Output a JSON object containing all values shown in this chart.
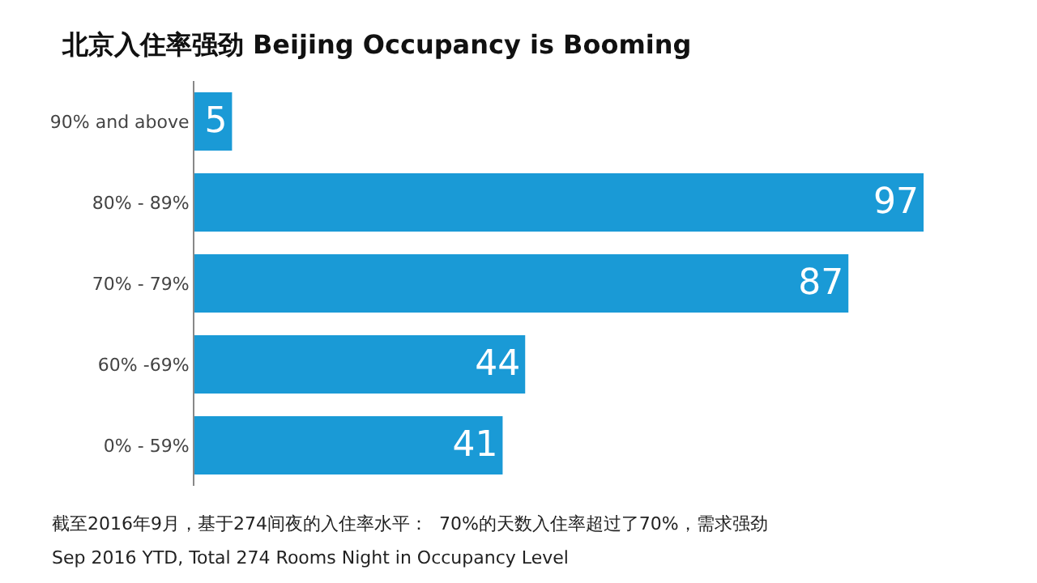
{
  "chart_data": {
    "type": "bar",
    "orientation": "horizontal",
    "title": "北京入住率强劲 Beijing Occupancy is Booming",
    "categories": [
      "90% and above",
      "80% - 89%",
      "70% - 79%",
      "60% -69%",
      "0% - 59%"
    ],
    "values": [
      5,
      97,
      87,
      44,
      41
    ],
    "color": "#1a9ad6",
    "data_labels": true,
    "legend": false,
    "annotations": [
      "截至2016年9月，基于274间夜的入住率水平：  70%的天数入住率超过了70%，需求强劲",
      "Sep 2016 YTD, Total 274 Rooms Night in Occupancy Level"
    ]
  }
}
